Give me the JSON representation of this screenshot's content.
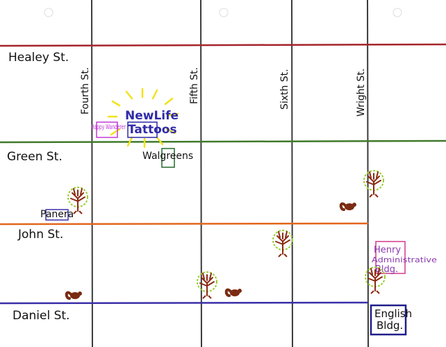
{
  "streets_horizontal": [
    {
      "name": "Healey St.",
      "color": "#a5242b"
    },
    {
      "name": "Green St.",
      "color": "#3f7a2a"
    },
    {
      "name": "John St.",
      "color": "#e2661c"
    },
    {
      "name": "Daniel St.",
      "color": "#3a2fa8"
    }
  ],
  "streets_vertical": [
    {
      "name": "Fourth St.",
      "color": "#3a3a3a"
    },
    {
      "name": "Fifth St.",
      "color": "#3a3a3a"
    },
    {
      "name": "Sixth St.",
      "color": "#3a3a3a"
    },
    {
      "name": "Wright St.",
      "color": "#3a3a3a"
    }
  ],
  "places": {
    "happy_wanderer": {
      "text": "Happy Wanderer",
      "color": "#c23ad6"
    },
    "newlife": {
      "line1": "NewLife",
      "line2": "Tattoos",
      "color": "#2f2aa6",
      "glow": "#f2e21a"
    },
    "walgreens": {
      "text": "Walgreens",
      "color": "#236b2a"
    },
    "panera": {
      "text": "Panera",
      "color": "#3a2fa8"
    },
    "henry": {
      "line1": "Henry",
      "line2": "Administrative",
      "line3": "Bldg.",
      "color": "#8a3ab0",
      "box_color": "#d03a8a"
    },
    "english": {
      "line1": "English",
      "line2": "Bldg.",
      "color": "#1f1d8a"
    }
  },
  "icons": {
    "tree_leaf_color": "#9acd32",
    "tree_trunk_color": "#8b2a12",
    "squirrel_color": "#7a2b12"
  }
}
